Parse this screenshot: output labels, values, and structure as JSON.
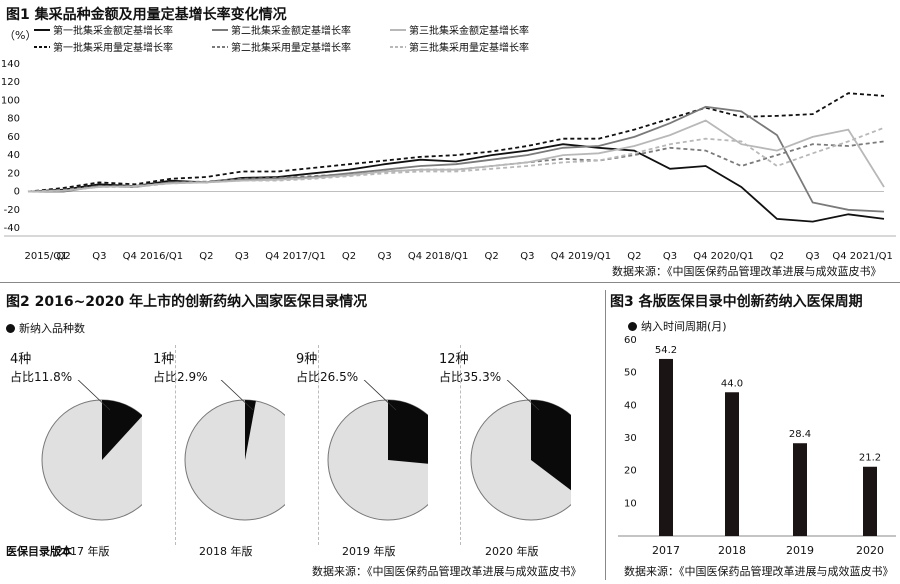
{
  "fig1": {
    "title": "图1  集采品种金额及用量定基增长率变化情况",
    "unit_label": "（%）",
    "source": "数据来源：《中国医保药品管理改革进展与成效蓝皮书》"
  },
  "fig2": {
    "title": "图2  2016~2020 年上市的创新药纳入国家医保目录情况",
    "legend": "新纳入品种数",
    "footer_label": "医保目录版本",
    "source": "数据来源：《中国医保药品管理改革进展与成效蓝皮书》",
    "panels": [
      {
        "year": "2017 年版",
        "count": "4种",
        "share": "占比11.8%"
      },
      {
        "year": "2018 年版",
        "count": "1种",
        "share": "占比2.9%"
      },
      {
        "year": "2019 年版",
        "count": "9种",
        "share": "占比26.5%"
      },
      {
        "year": "2020 年版",
        "count": "12种",
        "share": "占比35.3%"
      }
    ]
  },
  "fig3": {
    "title": "图3 各版医保目录中创新药纳入医保周期",
    "legend": "纳入时间周期(月)",
    "source": "数据来源：《中国医保药品管理改革进展与成效蓝皮书》"
  },
  "chart_data": [
    {
      "type": "line",
      "title": "图1  集采品种金额及用量定基增长率变化情况",
      "ylabel": "（%）",
      "ylim": [
        -40,
        140
      ],
      "yticks": [
        -40,
        -20,
        0,
        20,
        40,
        60,
        80,
        100,
        120,
        140
      ],
      "x": [
        "2015/Q1",
        "Q2",
        "Q3",
        "Q4",
        "2016/Q1",
        "Q2",
        "Q3",
        "Q4",
        "2017/Q1",
        "Q2",
        "Q3",
        "Q4",
        "2018/Q1",
        "Q2",
        "Q3",
        "Q4",
        "2019/Q1",
        "Q2",
        "Q3",
        "Q4",
        "2020/Q1",
        "Q2",
        "Q3",
        "Q4",
        "2021/Q1"
      ],
      "x_tick_labels": [
        "2015/Q1",
        "Q2",
        "Q3",
        "Q4 2016/Q1",
        "Q2",
        "Q3",
        "Q4 2017/Q1",
        "Q2",
        "Q3",
        "Q4 2018/Q1",
        "Q2",
        "Q3",
        "Q4 2019/Q1",
        "Q2",
        "Q3",
        "Q4 2020/Q1",
        "Q2",
        "Q3",
        "Q4 2021/Q1"
      ],
      "grid": false,
      "legend_position": "top",
      "series": [
        {
          "name": "第一批集采金额定基增长率",
          "color": "#111111",
          "dash": "solid",
          "values": [
            0,
            2,
            8,
            6,
            12,
            10,
            15,
            16,
            20,
            24,
            30,
            35,
            33,
            40,
            45,
            52,
            48,
            45,
            25,
            28,
            5,
            -30,
            -33,
            -25,
            -30
          ]
        },
        {
          "name": "第一批集采用量定基增长率",
          "color": "#111111",
          "dash": "dashed",
          "values": [
            0,
            4,
            10,
            8,
            14,
            16,
            22,
            22,
            26,
            30,
            34,
            38,
            40,
            44,
            50,
            58,
            58,
            68,
            80,
            92,
            82,
            83,
            85,
            108,
            105
          ]
        },
        {
          "name": "第二批集采金额定基增长率",
          "color": "#7a7a7a",
          "dash": "solid",
          "values": [
            0,
            0,
            6,
            5,
            10,
            10,
            13,
            14,
            16,
            20,
            24,
            28,
            30,
            35,
            40,
            48,
            50,
            60,
            75,
            93,
            88,
            62,
            -12,
            -20,
            -22
          ]
        },
        {
          "name": "第二批集采用量定基增长率",
          "color": "#7a7a7a",
          "dash": "dashed",
          "values": [
            0,
            2,
            6,
            6,
            10,
            11,
            14,
            15,
            17,
            19,
            22,
            24,
            24,
            28,
            32,
            36,
            34,
            40,
            48,
            45,
            28,
            40,
            52,
            50,
            55
          ]
        },
        {
          "name": "第三批集采金额定基增长率",
          "color": "#b8b8b8",
          "dash": "solid",
          "values": [
            0,
            1,
            5,
            6,
            9,
            10,
            12,
            13,
            15,
            18,
            22,
            24,
            24,
            28,
            32,
            40,
            42,
            50,
            62,
            78,
            52,
            45,
            60,
            68,
            5
          ]
        },
        {
          "name": "第三批集采用量定基增长率",
          "color": "#b8b8b8",
          "dash": "dashed",
          "values": [
            0,
            1,
            5,
            5,
            9,
            10,
            12,
            12,
            14,
            17,
            20,
            22,
            22,
            25,
            28,
            32,
            34,
            42,
            52,
            58,
            55,
            28,
            42,
            55,
            70
          ]
        }
      ]
    },
    {
      "type": "pie",
      "title": "图2  2016~2020 年上市的创新药纳入国家医保目录情况",
      "legend": "新纳入品种数",
      "categories": [
        "2017 年版",
        "2018 年版",
        "2019 年版",
        "2020 年版"
      ],
      "counts": [
        4,
        1,
        9,
        12
      ],
      "share_percent": [
        11.8,
        2.9,
        26.5,
        35.3
      ]
    },
    {
      "type": "bar",
      "title": "图3 各版医保目录中创新药纳入医保周期",
      "legend": "纳入时间周期(月)",
      "categories": [
        "2017",
        "2018",
        "2019",
        "2020"
      ],
      "values": [
        54.2,
        44.0,
        28.4,
        21.2
      ],
      "value_labels": [
        "54.2",
        "44.0",
        "28.4",
        "21.2"
      ],
      "ylim": [
        0,
        60
      ],
      "yticks": [
        10,
        20,
        30,
        40,
        50,
        60
      ]
    }
  ]
}
